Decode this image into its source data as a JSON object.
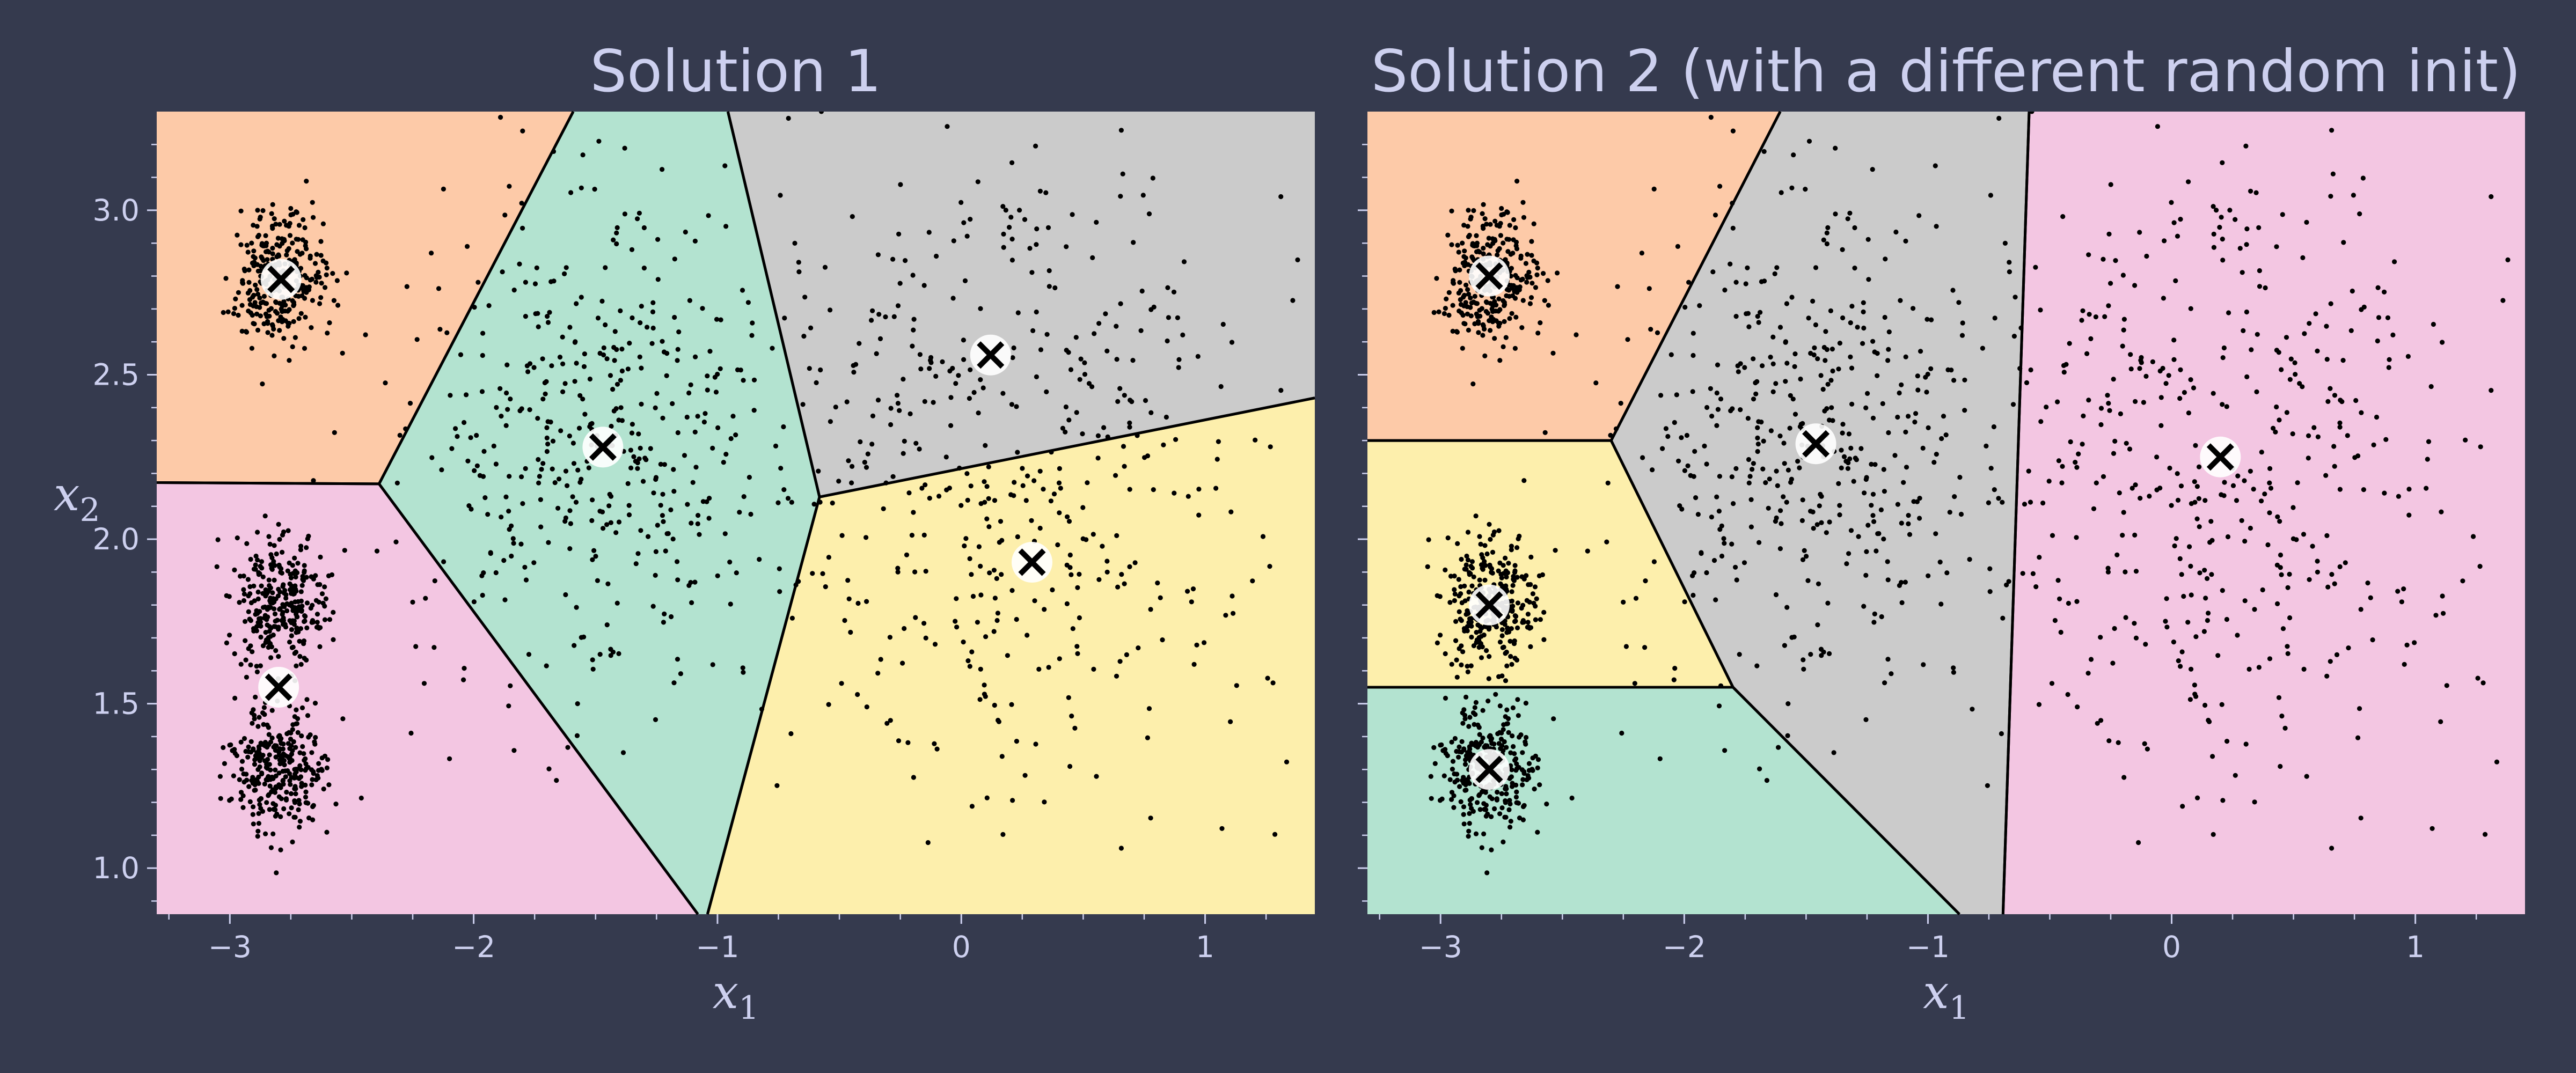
{
  "background": "#353a4e",
  "text_color": "#cdd0ef",
  "region_colors": {
    "orange": "#fdcaa8",
    "green": "#b3e3d0",
    "gray": "#cbcbcb",
    "yellow": "#fdefac",
    "pink": "#f3c6e2"
  },
  "chart_data": [
    {
      "type": "scatter",
      "subtype": "k-means decision boundaries (Voronoi regions)",
      "title": "Solution 1",
      "xlabel": "x",
      "xlabel_sub": "1",
      "ylabel": "x",
      "ylabel_sub": "2",
      "show_ylabel": true,
      "show_ytick_labels": true,
      "xlim": [
        -3.3,
        1.45
      ],
      "ylim": [
        0.86,
        3.3
      ],
      "xticks": [
        -3,
        -2,
        -1,
        0,
        1
      ],
      "xtick_labels": [
        "−3",
        "−2",
        "−1",
        "0",
        "1"
      ],
      "yticks": [
        1.0,
        1.5,
        2.0,
        2.5,
        3.0
      ],
      "ytick_labels": [
        "1.0",
        "1.5",
        "2.0",
        "2.5",
        "3.0"
      ],
      "grid": false,
      "legend": "none",
      "centroids": [
        {
          "x": -2.79,
          "y": 2.79,
          "region": "orange"
        },
        {
          "x": -2.8,
          "y": 1.55,
          "region": "pink"
        },
        {
          "x": -1.47,
          "y": 2.28,
          "region": "green"
        },
        {
          "x": 0.12,
          "y": 2.56,
          "region": "gray"
        },
        {
          "x": 0.29,
          "y": 1.93,
          "region": "yellow"
        }
      ],
      "blobs": [
        {
          "center": [
            -2.8,
            2.8
          ],
          "std": 0.1,
          "n": 300
        },
        {
          "center": [
            -2.8,
            1.8
          ],
          "std": 0.1,
          "n": 300
        },
        {
          "center": [
            -2.8,
            1.3
          ],
          "std": 0.1,
          "n": 300
        },
        {
          "center": [
            -1.47,
            2.29
          ],
          "std": 0.4,
          "n": 450
        },
        {
          "center": [
            0.2,
            2.25
          ],
          "std": 0.5,
          "n": 450
        }
      ]
    },
    {
      "type": "scatter",
      "subtype": "k-means decision boundaries (Voronoi regions)",
      "title": "Solution 2 (with a different random init)",
      "xlabel": "x",
      "xlabel_sub": "1",
      "ylabel": "",
      "ylabel_sub": "",
      "show_ylabel": false,
      "show_ytick_labels": false,
      "xlim": [
        -3.3,
        1.45
      ],
      "ylim": [
        0.86,
        3.3
      ],
      "xticks": [
        -3,
        -2,
        -1,
        0,
        1
      ],
      "xtick_labels": [
        "−3",
        "−2",
        "−1",
        "0",
        "1"
      ],
      "yticks": [
        1.0,
        1.5,
        2.0,
        2.5,
        3.0
      ],
      "ytick_labels": [
        "",
        "",
        "",
        "",
        ""
      ],
      "grid": false,
      "legend": "none",
      "centroids": [
        {
          "x": -2.8,
          "y": 2.8,
          "region": "orange"
        },
        {
          "x": -2.8,
          "y": 1.8,
          "region": "yellow"
        },
        {
          "x": -2.8,
          "y": 1.3,
          "region": "green"
        },
        {
          "x": -1.46,
          "y": 2.29,
          "region": "gray"
        },
        {
          "x": 0.2,
          "y": 2.25,
          "region": "pink"
        }
      ],
      "blobs": [
        {
          "center": [
            -2.8,
            2.8
          ],
          "std": 0.1,
          "n": 300
        },
        {
          "center": [
            -2.8,
            1.8
          ],
          "std": 0.1,
          "n": 300
        },
        {
          "center": [
            -2.8,
            1.3
          ],
          "std": 0.1,
          "n": 300
        },
        {
          "center": [
            -1.47,
            2.29
          ],
          "std": 0.4,
          "n": 450
        },
        {
          "center": [
            0.2,
            2.25
          ],
          "std": 0.5,
          "n": 450
        }
      ]
    }
  ]
}
